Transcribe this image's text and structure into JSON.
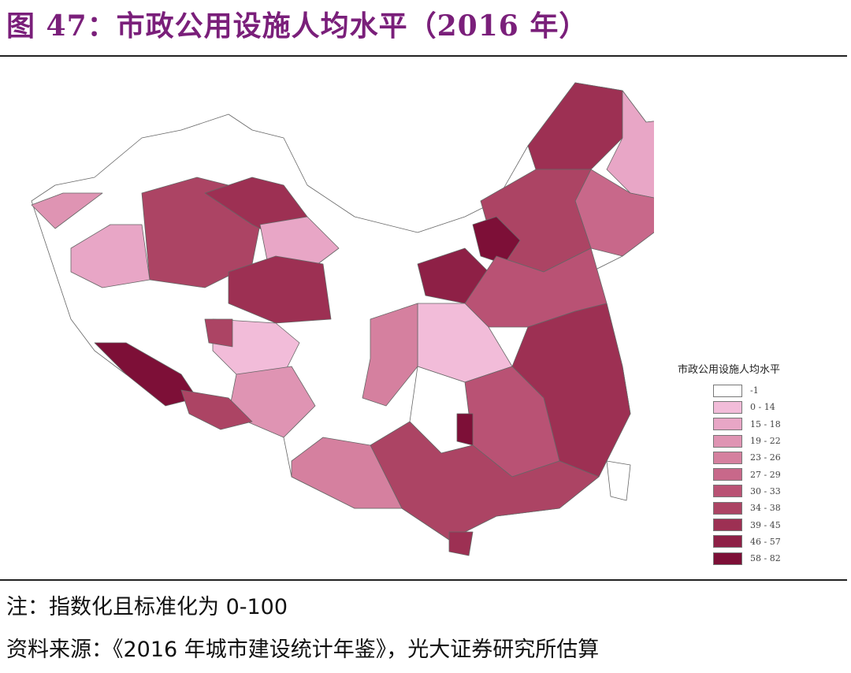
{
  "title": "图 47：市政公用设施人均水平（2016 年）",
  "legend": {
    "title": "市政公用设施人均水平",
    "items": [
      {
        "label": "-1",
        "color": "#ffffff"
      },
      {
        "label": "0 - 14",
        "color": "#f2bcd9"
      },
      {
        "label": "15 - 18",
        "color": "#e8a6c6"
      },
      {
        "label": "19 - 22",
        "color": "#df94b3"
      },
      {
        "label": "23 - 26",
        "color": "#d5809f"
      },
      {
        "label": "27 - 29",
        "color": "#c8688a"
      },
      {
        "label": "30 - 33",
        "color": "#b95274"
      },
      {
        "label": "34 - 38",
        "color": "#ac4464"
      },
      {
        "label": "39 - 45",
        "color": "#9d3053"
      },
      {
        "label": "46 - 57",
        "color": "#8e2046"
      },
      {
        "label": "58 - 82",
        "color": "#7d0f37"
      }
    ]
  },
  "note": "注：指数化且标准化为 0-100",
  "source": "资料来源：《2016 年城市建设统计年鉴》，光大证券研究所估算"
}
